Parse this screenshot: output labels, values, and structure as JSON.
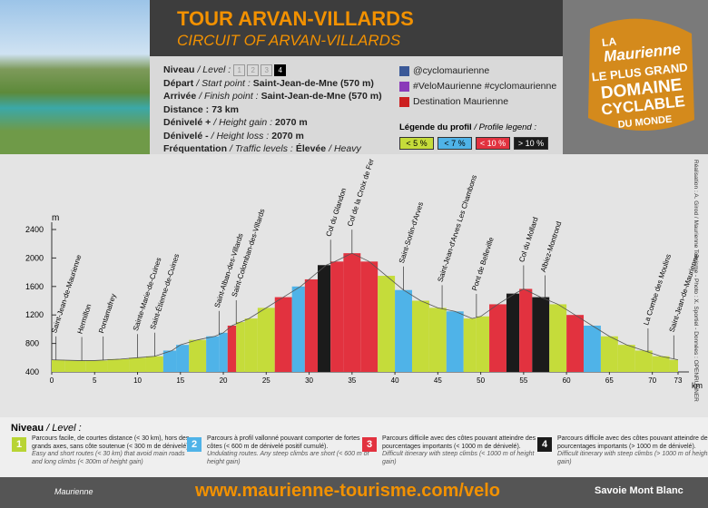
{
  "header": {
    "title": "TOUR ARVAN-VILLARDS",
    "subtitle": "CIRCUIT OF ARVAN-VILLARDS"
  },
  "info": {
    "level_label": "Niveau",
    "level_label_en": "/ Level :",
    "levels": [
      "1",
      "2",
      "3",
      "4"
    ],
    "active_level": 4,
    "rows": [
      {
        "label": "Départ",
        "label_en": "/ Start point :",
        "value": "Saint-Jean-de-Mne (570 m)"
      },
      {
        "label": "Arrivée",
        "label_en": "/ Finish point :",
        "value": "Saint-Jean-de-Mne (570 m)"
      },
      {
        "label": "Distance :",
        "value": "73 km"
      },
      {
        "label": "Dénivelé +",
        "label_en": "/ Height gain :",
        "value": "2070 m"
      },
      {
        "label": "Dénivelé -",
        "label_en": "/ Height loss :",
        "value": "2070 m"
      },
      {
        "label": "Fréquentation",
        "label_en": "/ Traffic levels :",
        "value": "Élevée",
        "value_en": "/ Heavy"
      }
    ]
  },
  "social": [
    "@cyclomaurienne",
    "#VeloMaurienne #cyclomaurienne",
    "Destination Maurienne"
  ],
  "badge": [
    "LA",
    "Maurienne",
    "LE PLUS GRAND",
    "DOMAINE",
    "CYCLABLE",
    "DU MONDE"
  ],
  "chart_data": {
    "type": "area",
    "xlabel": "km",
    "ylabel": "m",
    "x": [
      0,
      3,
      5,
      8,
      10,
      12,
      14,
      15,
      17,
      19,
      20,
      21,
      22,
      23,
      25,
      27,
      29,
      30,
      32,
      33,
      35,
      37,
      39,
      41,
      43,
      45,
      47,
      49,
      50,
      52,
      54,
      55,
      57,
      59,
      61,
      63,
      65,
      67,
      69,
      71,
      73
    ],
    "values": [
      570,
      560,
      560,
      580,
      600,
      620,
      700,
      780,
      850,
      900,
      950,
      1050,
      1100,
      1150,
      1300,
      1450,
      1600,
      1700,
      1900,
      1950,
      2067,
      1950,
      1750,
      1550,
      1400,
      1300,
      1250,
      1150,
      1180,
      1350,
      1500,
      1566,
      1450,
      1350,
      1200,
      1050,
      900,
      780,
      700,
      620,
      570
    ],
    "colors": [
      "#c5dc3a",
      "#c5dc3a",
      "#c5dc3a",
      "#c5dc3a",
      "#c5dc3a",
      "#c5dc3a",
      "#4fb3e8",
      "#4fb3e8",
      "#c5dc3a",
      "#4fb3e8",
      "#4fb3e8",
      "#e2323f",
      "#c5dc3a",
      "#c5dc3a",
      "#c5dc3a",
      "#e2323f",
      "#4fb3e8",
      "#e2323f",
      "#1b1b1b",
      "#e2323f",
      "#e2323f",
      "#e2323f",
      "#c5dc3a",
      "#4fb3e8",
      "#c5dc3a",
      "#c5dc3a",
      "#4fb3e8",
      "#c5dc3a",
      "#c5dc3a",
      "#e2323f",
      "#1b1b1b",
      "#e2323f",
      "#1b1b1b",
      "#c5dc3a",
      "#e2323f",
      "#4fb3e8",
      "#c5dc3a",
      "#c5dc3a",
      "#c5dc3a",
      "#c5dc3a",
      "#c5dc3a"
    ],
    "xlim": [
      0,
      73
    ],
    "ylim": [
      400,
      2400
    ],
    "yticks": [
      400,
      800,
      1200,
      1600,
      2000,
      2400
    ],
    "xticks": [
      0,
      5,
      10,
      15,
      20,
      25,
      30,
      35,
      40,
      45,
      50,
      55,
      60,
      65,
      70,
      73
    ],
    "places": [
      {
        "name": "Saint-Jean-de-Maurienne",
        "km": 0.5
      },
      {
        "name": "Hermillon",
        "km": 3.5
      },
      {
        "name": "Pontamafrey",
        "km": 6
      },
      {
        "name": "Sainte-Marie-de-Cuines",
        "km": 10
      },
      {
        "name": "Saint-Étienne-de-Cuines",
        "km": 12
      },
      {
        "name": "Saint-Alban-des-Villards",
        "km": 19.5
      },
      {
        "name": "Saint-Colomban-des-Villards",
        "km": 21.5
      },
      {
        "name": "Col du Glandon",
        "km": 32.5
      },
      {
        "name": "Col de la Croix de Fer",
        "km": 35
      },
      {
        "name": "Saint-Sorlin-d'Arves",
        "km": 41
      },
      {
        "name": "Saint-Jean-d'Arves Les Chambons",
        "km": 45.5
      },
      {
        "name": "Pont de Belleville",
        "km": 49.5
      },
      {
        "name": "Col du Mollard",
        "km": 55
      },
      {
        "name": "Albiez-Montrond",
        "km": 57.5
      },
      {
        "name": "La Combe des Moulins",
        "km": 69.5
      },
      {
        "name": "Saint-Jean-de-Maurienne",
        "km": 72.5
      }
    ],
    "legend": {
      "title": "Légende du profil",
      "title_en": "/ Profile legend :",
      "items": [
        {
          "label": "< 5 %",
          "color": "#c5dc3a"
        },
        {
          "label": "< 7 %",
          "color": "#4fb3e8"
        },
        {
          "label": "< 10 %",
          "color": "#e2323f"
        },
        {
          "label": "> 10 %",
          "color": "#1b1b1b"
        }
      ]
    }
  },
  "credit": "Réalisation : A. Girod / Maurienne Tourisme - Photo : X. Sportiel - Données : OPENRUNNER",
  "levels": {
    "title": "Niveau",
    "title_en": "/ Level :",
    "items": [
      {
        "number": "1",
        "color": "#b8d434",
        "text": "Parcours facile, de courtes distance (< 30 km), hors des grands axes, sans côte soutenue (< 300 m de dénivelé).",
        "text_en": "Easy and short routes (< 30 km) that avoid main roads and long climbs (< 300m of height gain)"
      },
      {
        "number": "2",
        "color": "#4fb3e8",
        "text": "Parcours à profil vallonné pouvant comporter de fortes côtes (< 600 m de dénivelé positif cumulé).",
        "text_en": "Undulating routes. Any steep climbs are short (< 600 m of height gain)"
      },
      {
        "number": "3",
        "color": "#e2323f",
        "text": "Parcours difficile avec des côtes pouvant atteindre des pourcentages importants (< 1000 m de dénivelé).",
        "text_en": "Difficult itinerary with steep climbs (< 1000 m of height gain)"
      },
      {
        "number": "4",
        "color": "#1b1b1b",
        "text": "Parcours difficile avec des côtes pouvant atteindre des pourcentages importants (> 1000 m de dénivelé).",
        "text_en": "Difficult itinerary with steep climbs (> 1000 m of height gain)"
      }
    ]
  },
  "footer": {
    "url": "www.maurienne-tourisme.com/velo",
    "logo_left": "Maurienne",
    "logo_right": "Savoie Mont Blanc"
  }
}
